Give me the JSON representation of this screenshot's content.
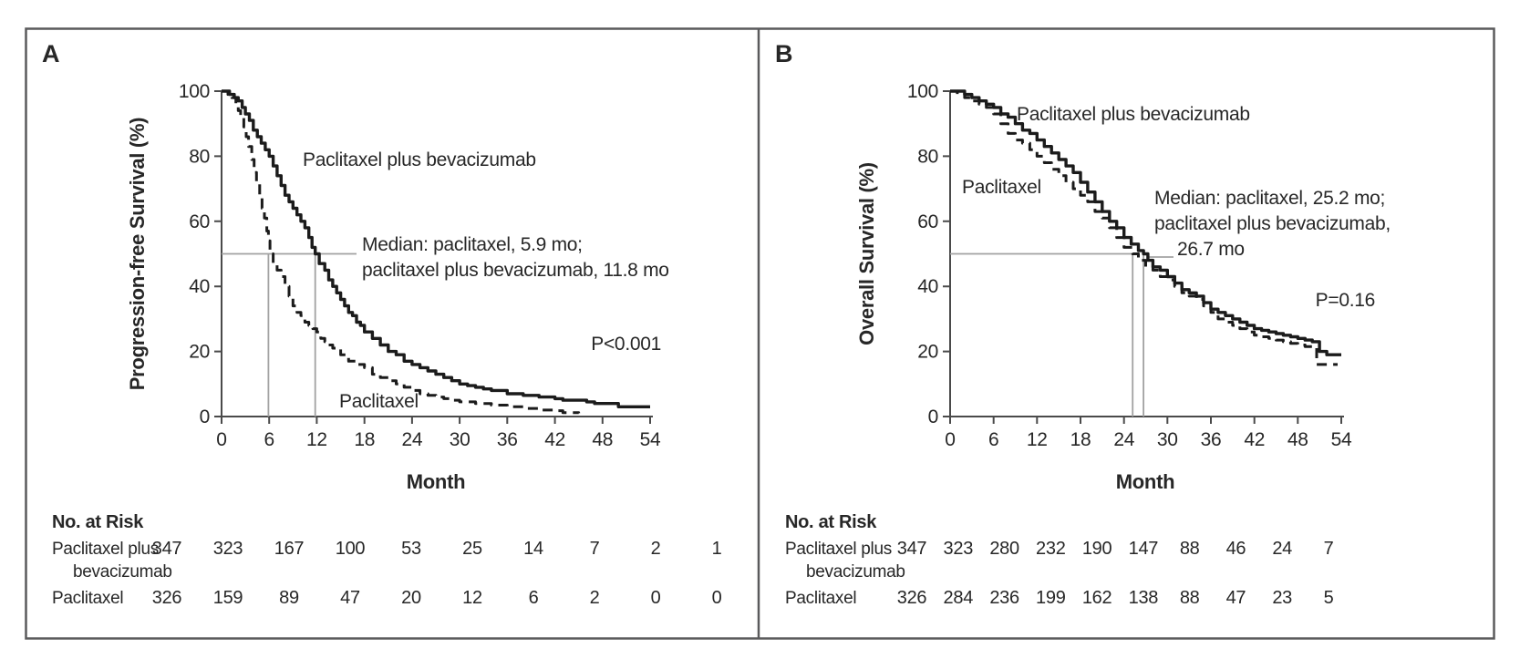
{
  "figure": {
    "panel_a_letter": "A",
    "panel_b_letter": "B"
  },
  "chart_data": [
    {
      "type": "line",
      "subtype": "kaplan-meier-step",
      "panel_label": "A",
      "title": "",
      "xlabel": "Month",
      "ylabel": "Progression-free Survival (%)",
      "xlim": [
        0,
        54
      ],
      "ylim": [
        0,
        100
      ],
      "grid": false,
      "x_ticks": [
        0,
        6,
        12,
        18,
        24,
        30,
        36,
        42,
        48,
        54
      ],
      "y_ticks_top_down": [
        100,
        80,
        60,
        40,
        20,
        0
      ],
      "p_value_label": "P<0.001",
      "median_label_lines": [
        "Median: paclitaxel, 5.9 mo;",
        "paclitaxel plus bevacizumab, 11.8 mo"
      ],
      "medians_mo": {
        "paclitaxel": 5.9,
        "paclitaxel_plus_bevacizumab": 11.8
      },
      "series": [
        {
          "name": "Paclitaxel plus bevacizumab",
          "line_style": "solid",
          "points": [
            [
              0,
              100
            ],
            [
              1,
              99
            ],
            [
              1.6,
              98
            ],
            [
              2.1,
              97
            ],
            [
              2.6,
              95
            ],
            [
              3,
              93
            ],
            [
              3.5,
              91
            ],
            [
              4,
              88
            ],
            [
              4.5,
              86
            ],
            [
              5,
              84
            ],
            [
              5.5,
              82
            ],
            [
              6,
              80
            ],
            [
              6.5,
              77
            ],
            [
              7,
              74
            ],
            [
              7.5,
              71
            ],
            [
              8,
              68
            ],
            [
              8.5,
              66
            ],
            [
              9,
              64
            ],
            [
              9.5,
              62
            ],
            [
              10,
              60
            ],
            [
              10.5,
              58
            ],
            [
              11,
              55
            ],
            [
              11.4,
              52
            ],
            [
              11.8,
              50
            ],
            [
              12.3,
              47
            ],
            [
              13,
              45
            ],
            [
              13.5,
              42
            ],
            [
              14,
              40
            ],
            [
              14.5,
              38
            ],
            [
              15,
              36
            ],
            [
              15.5,
              34
            ],
            [
              16,
              32
            ],
            [
              16.5,
              31
            ],
            [
              17,
              29
            ],
            [
              17.5,
              28
            ],
            [
              18,
              26
            ],
            [
              19,
              24
            ],
            [
              20,
              22
            ],
            [
              21,
              20
            ],
            [
              22,
              19
            ],
            [
              23,
              17
            ],
            [
              24,
              16
            ],
            [
              25,
              15
            ],
            [
              26,
              14
            ],
            [
              27,
              13
            ],
            [
              28,
              12
            ],
            [
              29,
              11
            ],
            [
              30,
              10
            ],
            [
              31,
              9.5
            ],
            [
              32,
              9
            ],
            [
              33,
              8.5
            ],
            [
              34,
              8
            ],
            [
              36,
              7
            ],
            [
              38,
              6.5
            ],
            [
              40,
              6
            ],
            [
              42,
              5.5
            ],
            [
              43,
              5
            ],
            [
              46,
              4.5
            ],
            [
              47,
              4
            ],
            [
              50,
              3
            ],
            [
              54,
              3
            ]
          ]
        },
        {
          "name": "Paclitaxel",
          "line_style": "dashed",
          "points": [
            [
              0,
              100
            ],
            [
              0.8,
              99
            ],
            [
              1.3,
              98
            ],
            [
              1.8,
              96
            ],
            [
              2.1,
              94
            ],
            [
              2.4,
              92
            ],
            [
              2.8,
              89
            ],
            [
              3.1,
              86
            ],
            [
              3.4,
              83
            ],
            [
              3.8,
              79
            ],
            [
              4.1,
              75
            ],
            [
              4.4,
              72
            ],
            [
              4.8,
              68
            ],
            [
              5.1,
              64
            ],
            [
              5.4,
              61
            ],
            [
              5.7,
              57
            ],
            [
              5.9,
              54
            ],
            [
              6.1,
              50
            ],
            [
              6.5,
              47
            ],
            [
              7,
              45
            ],
            [
              7.5,
              43
            ],
            [
              8,
              40
            ],
            [
              8.5,
              37
            ],
            [
              9,
              34
            ],
            [
              9.5,
              32
            ],
            [
              10,
              31
            ],
            [
              10.5,
              29
            ],
            [
              11,
              28
            ],
            [
              11.5,
              27
            ],
            [
              12,
              26
            ],
            [
              12.5,
              24
            ],
            [
              13,
              23
            ],
            [
              13.5,
              22
            ],
            [
              14,
              21
            ],
            [
              15,
              19
            ],
            [
              16,
              17
            ],
            [
              17,
              16
            ],
            [
              18,
              15
            ],
            [
              19,
              13
            ],
            [
              20,
              12
            ],
            [
              21,
              11
            ],
            [
              22,
              10
            ],
            [
              23,
              9
            ],
            [
              24,
              8
            ],
            [
              25,
              7
            ],
            [
              26,
              6.5
            ],
            [
              27,
              6
            ],
            [
              28,
              5.5
            ],
            [
              29,
              5
            ],
            [
              30,
              4.5
            ],
            [
              32,
              4
            ],
            [
              34,
              3.5
            ],
            [
              36,
              3
            ],
            [
              38,
              2.5
            ],
            [
              40,
              2
            ],
            [
              42,
              1.8
            ],
            [
              43,
              1.2
            ],
            [
              45,
              1
            ]
          ]
        }
      ],
      "no_at_risk": {
        "title": "No. at Risk",
        "timepoints": [
          0,
          6,
          12,
          18,
          24,
          30,
          36,
          42,
          48,
          54
        ],
        "rows": [
          {
            "label_lines": [
              "Paclitaxel plus",
              "bevacizumab"
            ],
            "values": [
              347,
              323,
              167,
              100,
              53,
              25,
              14,
              7,
              2,
              1
            ]
          },
          {
            "label_lines": [
              "Paclitaxel"
            ],
            "values": [
              326,
              159,
              89,
              47,
              20,
              12,
              6,
              2,
              0,
              0
            ]
          }
        ]
      }
    },
    {
      "type": "line",
      "subtype": "kaplan-meier-step",
      "panel_label": "B",
      "title": "",
      "xlabel": "Month",
      "ylabel": "Overall Survival (%)",
      "xlim": [
        0,
        54
      ],
      "ylim": [
        0,
        100
      ],
      "grid": false,
      "x_ticks": [
        0,
        6,
        12,
        18,
        24,
        30,
        36,
        42,
        48,
        54
      ],
      "y_ticks_top_down": [
        100,
        80,
        60,
        40,
        20,
        0
      ],
      "p_value_label": "P=0.16",
      "median_label_lines": [
        "Median: paclitaxel, 25.2 mo;",
        "paclitaxel plus bevacizumab,",
        "26.7 mo"
      ],
      "medians_mo": {
        "paclitaxel": 25.2,
        "paclitaxel_plus_bevacizumab": 26.7
      },
      "series": [
        {
          "name": "Paclitaxel plus bevacizumab",
          "line_style": "solid",
          "points": [
            [
              0,
              100
            ],
            [
              1.5,
              100
            ],
            [
              2,
              99
            ],
            [
              3,
              98
            ],
            [
              4,
              97
            ],
            [
              5,
              96
            ],
            [
              6,
              95
            ],
            [
              7,
              93
            ],
            [
              8,
              92
            ],
            [
              9,
              90
            ],
            [
              10,
              88
            ],
            [
              11,
              87
            ],
            [
              12,
              85
            ],
            [
              13,
              83
            ],
            [
              14,
              81
            ],
            [
              15,
              79
            ],
            [
              16,
              77
            ],
            [
              17,
              75
            ],
            [
              18,
              72
            ],
            [
              19,
              69
            ],
            [
              20,
              66
            ],
            [
              21,
              63
            ],
            [
              22,
              60
            ],
            [
              23,
              58
            ],
            [
              24,
              55
            ],
            [
              25,
              53
            ],
            [
              26,
              51
            ],
            [
              26.7,
              50
            ],
            [
              27.3,
              48
            ],
            [
              28,
              46
            ],
            [
              29,
              45
            ],
            [
              30,
              43
            ],
            [
              31,
              41
            ],
            [
              32,
              39
            ],
            [
              33,
              38
            ],
            [
              34,
              37
            ],
            [
              35,
              35
            ],
            [
              36,
              33
            ],
            [
              37,
              32
            ],
            [
              38,
              31
            ],
            [
              39,
              30
            ],
            [
              40,
              29
            ],
            [
              41,
              28
            ],
            [
              42,
              27
            ],
            [
              43,
              26.5
            ],
            [
              44,
              26
            ],
            [
              45,
              25.5
            ],
            [
              46,
              25
            ],
            [
              47,
              24.5
            ],
            [
              48,
              24
            ],
            [
              49,
              23.5
            ],
            [
              50,
              23
            ],
            [
              51,
              20
            ],
            [
              52,
              19
            ],
            [
              54,
              19
            ]
          ]
        },
        {
          "name": "Paclitaxel",
          "line_style": "dashed",
          "points": [
            [
              0,
              100
            ],
            [
              1,
              99
            ],
            [
              2,
              98
            ],
            [
              3,
              97
            ],
            [
              4,
              96
            ],
            [
              5,
              95
            ],
            [
              6,
              93
            ],
            [
              7,
              90
            ],
            [
              8,
              87
            ],
            [
              9,
              85
            ],
            [
              10,
              84
            ],
            [
              11,
              82
            ],
            [
              12,
              80
            ],
            [
              13,
              78
            ],
            [
              14,
              76
            ],
            [
              15,
              74
            ],
            [
              16,
              72
            ],
            [
              17,
              70
            ],
            [
              18,
              68
            ],
            [
              19,
              66
            ],
            [
              20,
              63
            ],
            [
              21,
              61
            ],
            [
              22,
              58
            ],
            [
              23,
              55
            ],
            [
              24,
              52
            ],
            [
              25.2,
              50
            ],
            [
              26,
              48
            ],
            [
              27,
              46
            ],
            [
              28,
              45
            ],
            [
              29,
              43
            ],
            [
              30,
              42
            ],
            [
              31,
              40
            ],
            [
              32,
              38
            ],
            [
              33,
              37
            ],
            [
              34,
              36
            ],
            [
              35,
              34
            ],
            [
              36,
              32
            ],
            [
              37,
              30
            ],
            [
              38,
              29
            ],
            [
              39,
              28
            ],
            [
              40,
              27
            ],
            [
              41,
              26
            ],
            [
              42,
              25
            ],
            [
              43,
              24.5
            ],
            [
              44,
              24
            ],
            [
              45,
              23.5
            ],
            [
              46,
              23
            ],
            [
              47,
              22.5
            ],
            [
              48,
              22
            ],
            [
              49,
              21.5
            ],
            [
              50,
              21
            ],
            [
              50.6,
              16
            ],
            [
              53.5,
              16
            ]
          ]
        }
      ],
      "no_at_risk": {
        "title": "No. at Risk",
        "timepoints": [
          0,
          6,
          12,
          18,
          24,
          30,
          36,
          42,
          48,
          54
        ],
        "rows": [
          {
            "label_lines": [
              "Paclitaxel plus",
              "bevacizumab"
            ],
            "values": [
              347,
              323,
              280,
              232,
              190,
              147,
              88,
              46,
              24,
              7
            ]
          },
          {
            "label_lines": [
              "Paclitaxel"
            ],
            "values": [
              326,
              284,
              236,
              199,
              162,
              138,
              88,
              47,
              23,
              5
            ]
          }
        ]
      }
    }
  ]
}
